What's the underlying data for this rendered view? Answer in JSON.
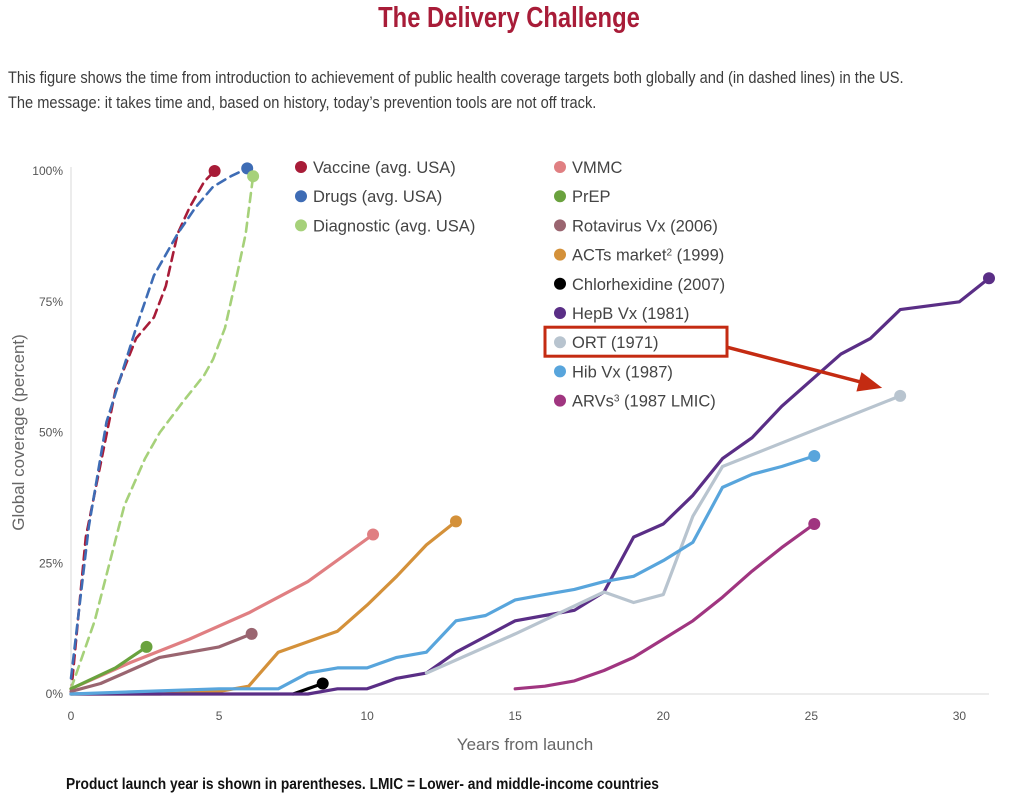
{
  "title": "The Delivery Challenge",
  "subtitle_line1": "This figure shows the time from introduction to achievement of public health coverage targets both globally and (in dashed lines) in the US.",
  "subtitle_line2": "The message: it takes time and, based on history, today’s prevention tools are not off track.",
  "footnote": "Product launch year is shown in parentheses. LMIC = Lower- and middle-income countries",
  "chart_data": {
    "type": "line",
    "xlabel": "Years from launch",
    "ylabel": "Global coverage (percent)",
    "xlim": [
      0,
      31
    ],
    "ylim": [
      0,
      100
    ],
    "x_ticks": [
      0,
      5,
      10,
      15,
      20,
      25,
      30
    ],
    "y_ticks": [
      0,
      25,
      50,
      75,
      100
    ],
    "y_tick_labels": [
      "0%",
      "25%",
      "50%",
      "75%",
      "100%"
    ],
    "legend_placement": "top-center",
    "highlighted_series": "ORT (1971)",
    "series": [
      {
        "name": "Vaccine (avg. USA)",
        "legend_main": "Vaccine (avg. USA)",
        "legend_sup": "",
        "legend_tail": "",
        "color": "#a81c38",
        "dashed": true,
        "legend_col": 0,
        "points": [
          [
            0,
            0
          ],
          [
            0.5,
            30
          ],
          [
            1.5,
            58
          ],
          [
            2.2,
            68
          ],
          [
            2.8,
            72
          ],
          [
            3.2,
            78
          ],
          [
            3.6,
            88
          ],
          [
            4,
            93
          ],
          [
            4.5,
            98
          ],
          [
            4.85,
            100
          ]
        ]
      },
      {
        "name": "Drugs (avg. USA)",
        "legend_main": "Drugs (avg. USA)",
        "legend_sup": "",
        "legend_tail": "",
        "color": "#3e6cb5",
        "dashed": true,
        "legend_col": 0,
        "points": [
          [
            0,
            3
          ],
          [
            0.6,
            32
          ],
          [
            1.2,
            52
          ],
          [
            2.2,
            70
          ],
          [
            2.8,
            80
          ],
          [
            3.6,
            88
          ],
          [
            4.2,
            93
          ],
          [
            4.8,
            97
          ],
          [
            5.4,
            99
          ],
          [
            5.95,
            100.5
          ]
        ]
      },
      {
        "name": "Diagnostic (avg. USA)",
        "legend_main": "Diagnostic (avg. USA)",
        "legend_sup": "",
        "legend_tail": "",
        "color": "#a6d17a",
        "dashed": true,
        "legend_col": 0,
        "points": [
          [
            0,
            1
          ],
          [
            0.8,
            14
          ],
          [
            1.8,
            36
          ],
          [
            2.5,
            45
          ],
          [
            3,
            50
          ],
          [
            3.8,
            56
          ],
          [
            4.5,
            61
          ],
          [
            4.8,
            64
          ],
          [
            5.2,
            70
          ],
          [
            5.6,
            80
          ],
          [
            5.9,
            88
          ],
          [
            6.15,
            99
          ]
        ]
      },
      {
        "name": "VMMC",
        "legend_main": "VMMC",
        "legend_sup": "",
        "legend_tail": "",
        "color": "#e07f82",
        "dashed": false,
        "legend_col": 1,
        "points": [
          [
            0,
            1
          ],
          [
            2,
            6
          ],
          [
            4,
            10.5
          ],
          [
            6,
            15.5
          ],
          [
            8,
            21.5
          ],
          [
            10.2,
            30.5
          ]
        ]
      },
      {
        "name": "PrEP",
        "legend_main": "PrEP",
        "legend_sup": "",
        "legend_tail": "",
        "color": "#6aa23e",
        "dashed": false,
        "legend_col": 1,
        "points": [
          [
            0,
            1
          ],
          [
            1.5,
            5
          ],
          [
            2.55,
            9
          ]
        ]
      },
      {
        "name": "Rotavirus Vx (2006)",
        "legend_main": "Rotavirus Vx (2006)",
        "legend_sup": "",
        "legend_tail": "",
        "color": "#9a6570",
        "dashed": false,
        "legend_col": 1,
        "points": [
          [
            0,
            0.5
          ],
          [
            1,
            2
          ],
          [
            2,
            4.5
          ],
          [
            3,
            7
          ],
          [
            4,
            8
          ],
          [
            5,
            9
          ],
          [
            6.1,
            11.5
          ]
        ]
      },
      {
        "name": "ACTs market² (1999)",
        "legend_main": "ACTs market",
        "legend_sup": "2",
        "legend_tail": " (1999)",
        "color": "#d4913a",
        "dashed": false,
        "legend_col": 1,
        "points": [
          [
            0,
            0
          ],
          [
            3,
            0
          ],
          [
            5,
            0.5
          ],
          [
            6,
            1.5
          ],
          [
            7,
            8
          ],
          [
            8,
            10
          ],
          [
            9,
            12
          ],
          [
            10,
            17
          ],
          [
            11,
            22.5
          ],
          [
            12,
            28.5
          ],
          [
            13,
            33
          ]
        ]
      },
      {
        "name": "Chlorhexidine (2007)",
        "legend_main": "Chlorhexidine (2007)",
        "legend_sup": "",
        "legend_tail": "",
        "color": "#000000",
        "dashed": false,
        "legend_col": 1,
        "points": [
          [
            7.5,
            0
          ],
          [
            8.5,
            2
          ]
        ]
      },
      {
        "name": "HepB Vx (1981)",
        "legend_main": "HepB Vx (1981)",
        "legend_sup": "",
        "legend_tail": "",
        "color": "#5a2e86",
        "dashed": false,
        "legend_col": 1,
        "points": [
          [
            0,
            0
          ],
          [
            8,
            0
          ],
          [
            9,
            1
          ],
          [
            10,
            1
          ],
          [
            11,
            3
          ],
          [
            12,
            4
          ],
          [
            13,
            8
          ],
          [
            14,
            11
          ],
          [
            15,
            14
          ],
          [
            16,
            15
          ],
          [
            17,
            16
          ],
          [
            18,
            19.5
          ],
          [
            19,
            30
          ],
          [
            20,
            32.5
          ],
          [
            21,
            38
          ],
          [
            22,
            45
          ],
          [
            23,
            49
          ],
          [
            24,
            55
          ],
          [
            25,
            60
          ],
          [
            26,
            65
          ],
          [
            27,
            68
          ],
          [
            28,
            73.5
          ],
          [
            30,
            75
          ],
          [
            31,
            79.5
          ]
        ]
      },
      {
        "name": "ORT (1971)",
        "legend_main": "ORT (1971)",
        "legend_sup": "",
        "legend_tail": "",
        "color": "#b8c4cf",
        "dashed": false,
        "legend_col": 1,
        "points": [
          [
            12,
            4
          ],
          [
            15,
            11.5
          ],
          [
            18,
            19.5
          ],
          [
            19,
            17.5
          ],
          [
            20,
            19
          ],
          [
            21,
            34
          ],
          [
            22,
            43.5
          ],
          [
            28,
            57
          ]
        ]
      },
      {
        "name": "Hib Vx (1987)",
        "legend_main": "Hib Vx (1987)",
        "legend_sup": "",
        "legend_tail": "",
        "color": "#58a5dc",
        "dashed": false,
        "legend_col": 1,
        "points": [
          [
            0,
            0
          ],
          [
            5,
            1
          ],
          [
            7,
            1
          ],
          [
            8,
            4
          ],
          [
            9,
            5
          ],
          [
            10,
            5
          ],
          [
            11,
            7
          ],
          [
            12,
            8
          ],
          [
            13,
            14
          ],
          [
            14,
            15
          ],
          [
            15,
            18
          ],
          [
            16,
            19
          ],
          [
            17,
            20
          ],
          [
            18,
            21.5
          ],
          [
            19,
            22.5
          ],
          [
            20,
            25.5
          ],
          [
            21,
            29
          ],
          [
            22,
            39.5
          ],
          [
            23,
            42
          ],
          [
            24,
            43.5
          ],
          [
            25.1,
            45.5
          ]
        ]
      },
      {
        "name": "ARVs³ (1987 LMIC)",
        "legend_main": "ARVs",
        "legend_sup": "3",
        "legend_tail": " (1987 LMIC)",
        "color": "#a03580",
        "dashed": false,
        "legend_col": 1,
        "points": [
          [
            15,
            1
          ],
          [
            16,
            1.5
          ],
          [
            17,
            2.5
          ],
          [
            18,
            4.5
          ],
          [
            19,
            7
          ],
          [
            20,
            10.5
          ],
          [
            21,
            14
          ],
          [
            22,
            18.5
          ],
          [
            23,
            23.5
          ],
          [
            24,
            28
          ],
          [
            25.1,
            32.5
          ]
        ]
      }
    ]
  }
}
